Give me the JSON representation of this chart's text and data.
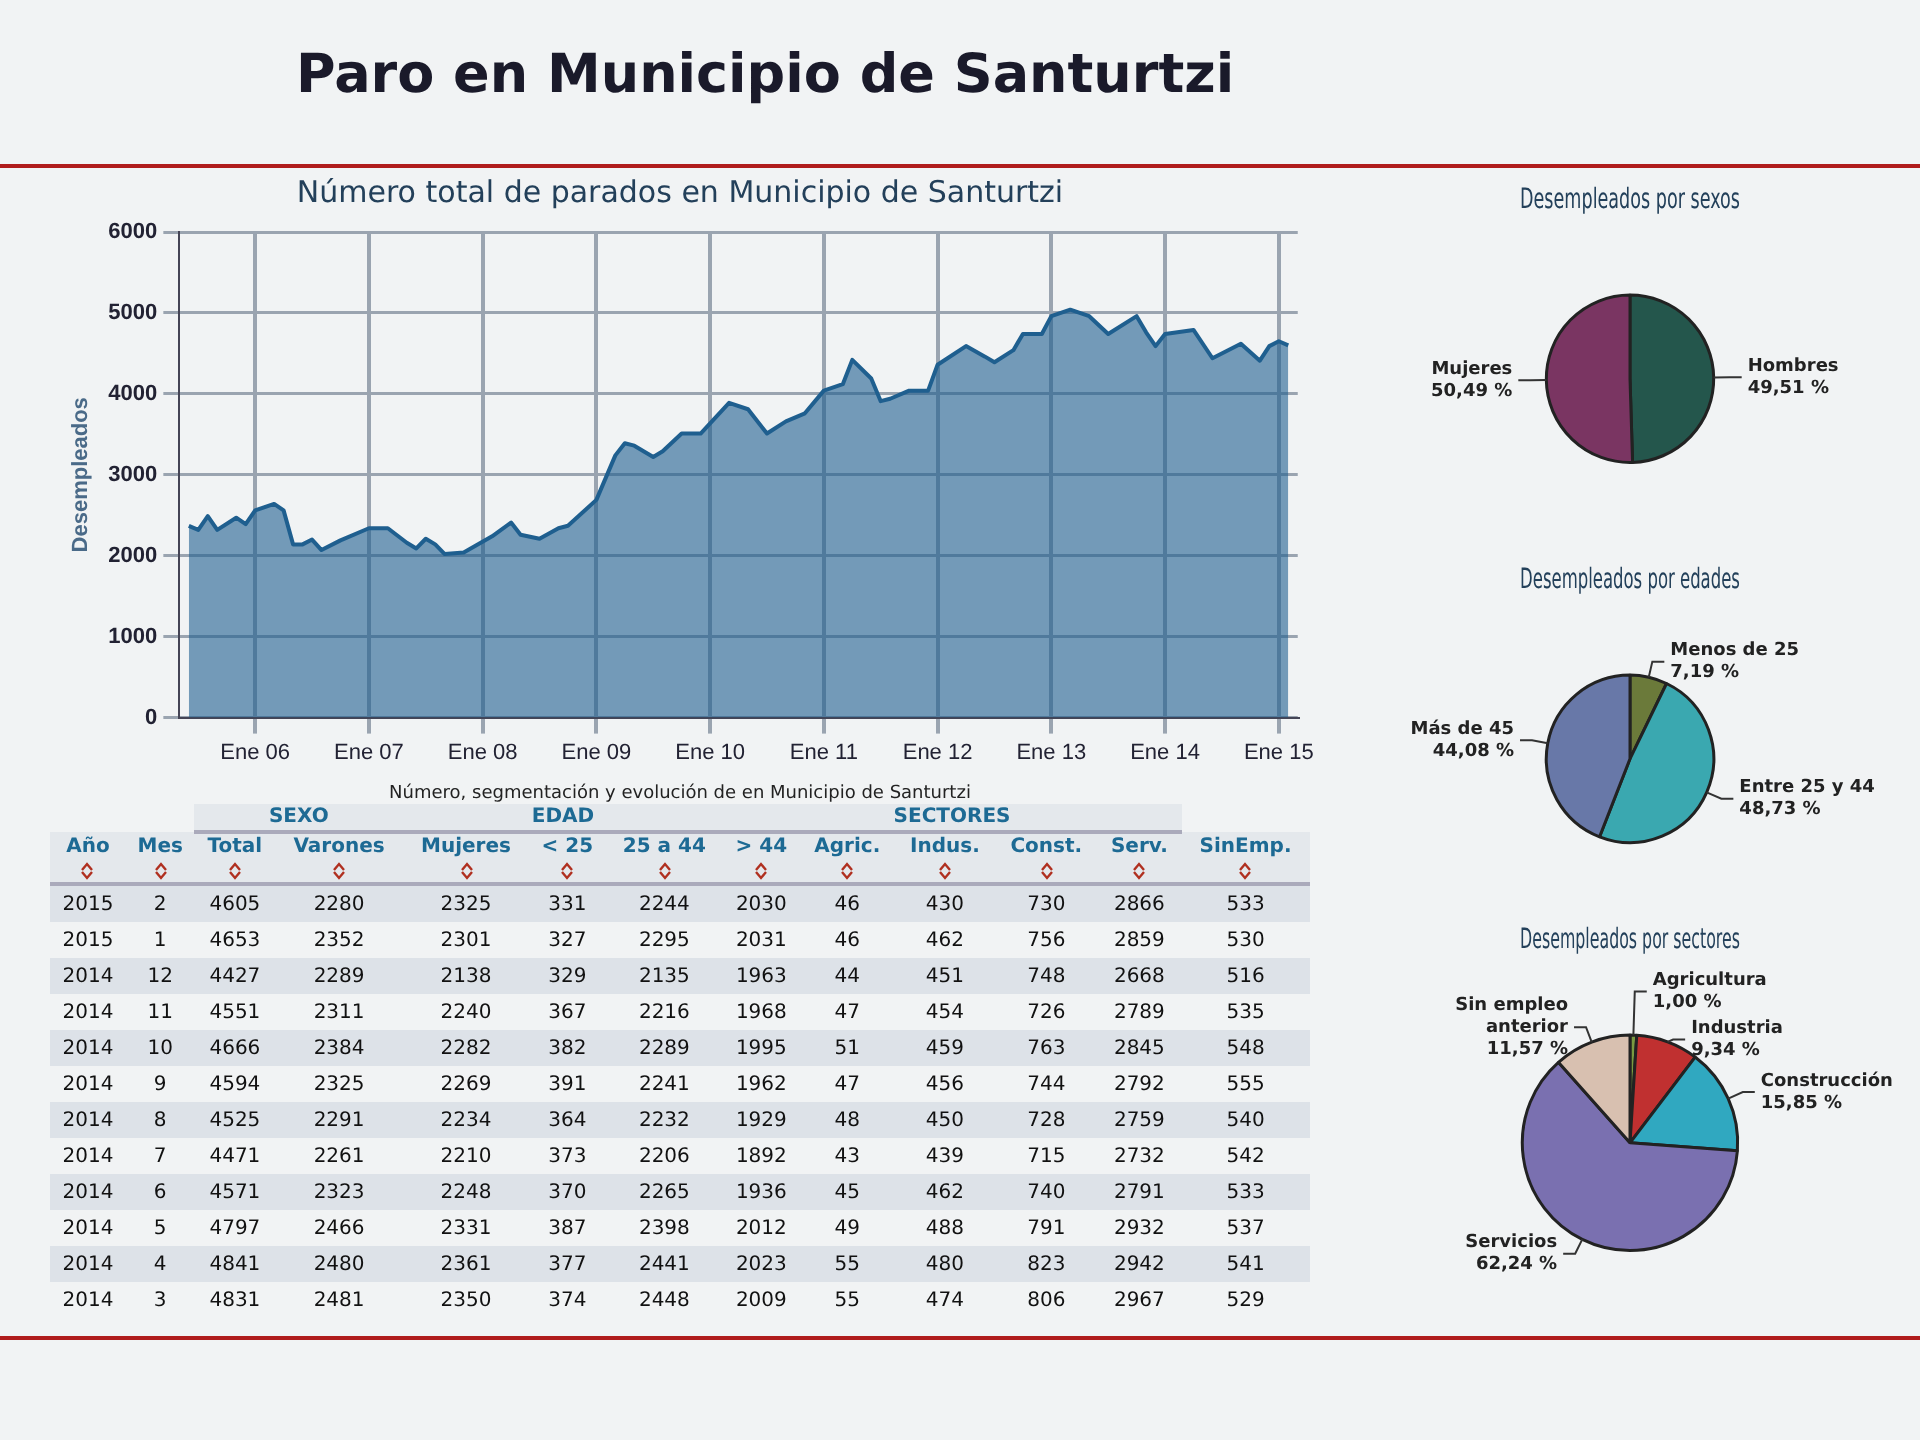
{
  "chart_data": [
    {
      "type": "area",
      "title": "Número total de parados en Municipio de Santurtzi",
      "ylabel": "Desempleados",
      "annotations": [
        "Paro en Municipio de Santurtzi"
      ],
      "x": [
        "2005-06",
        "2005-07",
        "2005-08",
        "2005-09",
        "2005-11",
        "2005-12",
        "2006-01",
        "2006-03",
        "2006-04",
        "2006-05",
        "2006-06",
        "2006-07",
        "2006-08",
        "2006-10",
        "2007-01",
        "2007-03",
        "2007-05",
        "2007-06",
        "2007-07",
        "2007-08",
        "2007-09",
        "2007-11",
        "2008-02",
        "2008-04",
        "2008-05",
        "2008-07",
        "2008-09",
        "2008-10",
        "2009-01",
        "2009-03",
        "2009-04",
        "2009-05",
        "2009-07",
        "2009-08",
        "2009-10",
        "2009-12",
        "2010-03",
        "2010-05",
        "2010-07",
        "2010-09",
        "2010-11",
        "2011-01",
        "2011-03",
        "2011-04",
        "2011-06",
        "2011-07",
        "2011-08",
        "2011-10",
        "2011-12",
        "2012-01",
        "2012-04",
        "2012-06",
        "2012-07",
        "2012-09",
        "2012-10",
        "2012-12",
        "2013-01",
        "2013-03",
        "2013-05",
        "2013-07",
        "2013-10",
        "2013-11",
        "2013-12",
        "2014-01",
        "2014-04",
        "2014-06",
        "2014-09",
        "2014-11",
        "2014-12",
        "2015-01",
        "2015-02"
      ],
      "series": [
        {
          "color": "#1f5f8f",
          "values": [
            2370,
            2320,
            2490,
            2320,
            2470,
            2390,
            2560,
            2640,
            2560,
            2140,
            2140,
            2200,
            2070,
            2190,
            2340,
            2340,
            2160,
            2090,
            2210,
            2140,
            2020,
            2040,
            2240,
            2410,
            2260,
            2210,
            2340,
            2370,
            2690,
            3240,
            3390,
            3360,
            3220,
            3290,
            3510,
            3510,
            3890,
            3810,
            3510,
            3660,
            3760,
            4040,
            4120,
            4420,
            4190,
            3910,
            3940,
            4040,
            4040,
            4360,
            4590,
            4460,
            4390,
            4540,
            4740,
            4740,
            4960,
            5040,
            4960,
            4740,
            4960,
            4760,
            4590,
            4740,
            4790,
            4440,
            4620,
            4410,
            4590,
            4650,
            4600
          ]
        }
      ],
      "xlim": [
        "2005-05",
        "2015-03"
      ],
      "xticks": [
        {
          "value": "2006-01",
          "label": "Ene 06"
        },
        {
          "value": "2007-01",
          "label": "Ene 07"
        },
        {
          "value": "2008-01",
          "label": "Ene 08"
        },
        {
          "value": "2009-01",
          "label": "Ene 09"
        },
        {
          "value": "2010-01",
          "label": "Ene 10"
        },
        {
          "value": "2011-01",
          "label": "Ene 11"
        },
        {
          "value": "2012-01",
          "label": "Ene 12"
        },
        {
          "value": "2013-01",
          "label": "Ene 13"
        },
        {
          "value": "2014-01",
          "label": "Ene 14"
        },
        {
          "value": "2015-01",
          "label": "Ene 15"
        }
      ],
      "ylim": [
        0,
        6000
      ],
      "yticks": [
        0,
        1000,
        2000,
        3000,
        4000,
        5000,
        6000
      ],
      "grid": true,
      "legend": false,
      "marker": "none"
    },
    {
      "type": "heatmap",
      "title": "Número, segmentación y evolución de en Municipio de Santurtzi",
      "ylabel": "Año",
      "annotations": [
        "SEXO",
        "EDAD",
        "SECTORES"
      ],
      "data_labels": true,
      "categories": [
        "Mes",
        "Total",
        "Varones",
        "Mujeres",
        "< 25",
        "25 a 44",
        "> 44",
        "Agric.",
        "Indus.",
        "Const.",
        "Serv.",
        "SinEmp."
      ],
      "y_categories": [
        "2015",
        "2015",
        "2014",
        "2014",
        "2014",
        "2014",
        "2014",
        "2014",
        "2014",
        "2014",
        "2014",
        "2014"
      ],
      "cells": [
        [
          2,
          4605,
          2280,
          2325,
          331,
          2244,
          2030,
          46,
          430,
          730,
          2866,
          533
        ],
        [
          1,
          4653,
          2352,
          2301,
          327,
          2295,
          2031,
          46,
          462,
          756,
          2859,
          530
        ],
        [
          12,
          4427,
          2289,
          2138,
          329,
          2135,
          1963,
          44,
          451,
          748,
          2668,
          516
        ],
        [
          11,
          4551,
          2311,
          2240,
          367,
          2216,
          1968,
          47,
          454,
          726,
          2789,
          535
        ],
        [
          10,
          4666,
          2384,
          2282,
          382,
          2289,
          1995,
          51,
          459,
          763,
          2845,
          548
        ],
        [
          9,
          4594,
          2325,
          2269,
          391,
          2241,
          1962,
          47,
          456,
          744,
          2792,
          555
        ],
        [
          8,
          4525,
          2291,
          2234,
          364,
          2232,
          1929,
          48,
          450,
          728,
          2759,
          540
        ],
        [
          7,
          4471,
          2261,
          2210,
          373,
          2206,
          1892,
          43,
          439,
          715,
          2732,
          542
        ],
        [
          6,
          4571,
          2323,
          2248,
          370,
          2265,
          1936,
          45,
          462,
          740,
          2791,
          533
        ],
        [
          5,
          4797,
          2466,
          2331,
          387,
          2398,
          2012,
          49,
          488,
          791,
          2932,
          537
        ],
        [
          4,
          4841,
          2480,
          2361,
          377,
          2441,
          2023,
          55,
          480,
          823,
          2942,
          541
        ],
        [
          3,
          4831,
          2481,
          2350,
          374,
          2448,
          2009,
          55,
          474,
          806,
          2967,
          529
        ]
      ]
    },
    {
      "type": "pie",
      "title": "Desempleados por sexos",
      "categories": [
        "Hombres",
        "Mujeres"
      ],
      "values": [
        49.51,
        50.49
      ],
      "colors": [
        "#24564c",
        "#7a3562"
      ],
      "value_labels": [
        "49,51 %",
        "50,49 %"
      ],
      "legend": false
    },
    {
      "type": "pie",
      "title": "Desempleados por edades",
      "categories": [
        "Menos de 25",
        "Entre 25 y 44",
        "Más de 45"
      ],
      "values": [
        7.19,
        48.73,
        44.08
      ],
      "colors": [
        "#6b7a3a",
        "#3aa8b0",
        "#6878a8"
      ],
      "value_labels": [
        "7,19 %",
        "48,73 %",
        "44,08 %"
      ],
      "legend": false
    },
    {
      "type": "pie",
      "title": "Desempleados por sectores",
      "categories": [
        "Agricultura",
        "Industria",
        "Construcción",
        "Servicios",
        "Sin empleo anterior"
      ],
      "values": [
        1.0,
        9.34,
        15.85,
        62.24,
        11.57
      ],
      "colors": [
        "#7a9a40",
        "#c03030",
        "#30a8c0",
        "#7a70b0",
        "#d8c0b0"
      ],
      "value_labels": [
        "1,00 %",
        "9,34 %",
        "15,85 %",
        "62,24 %",
        "11,57 %"
      ],
      "legend": false
    }
  ]
}
